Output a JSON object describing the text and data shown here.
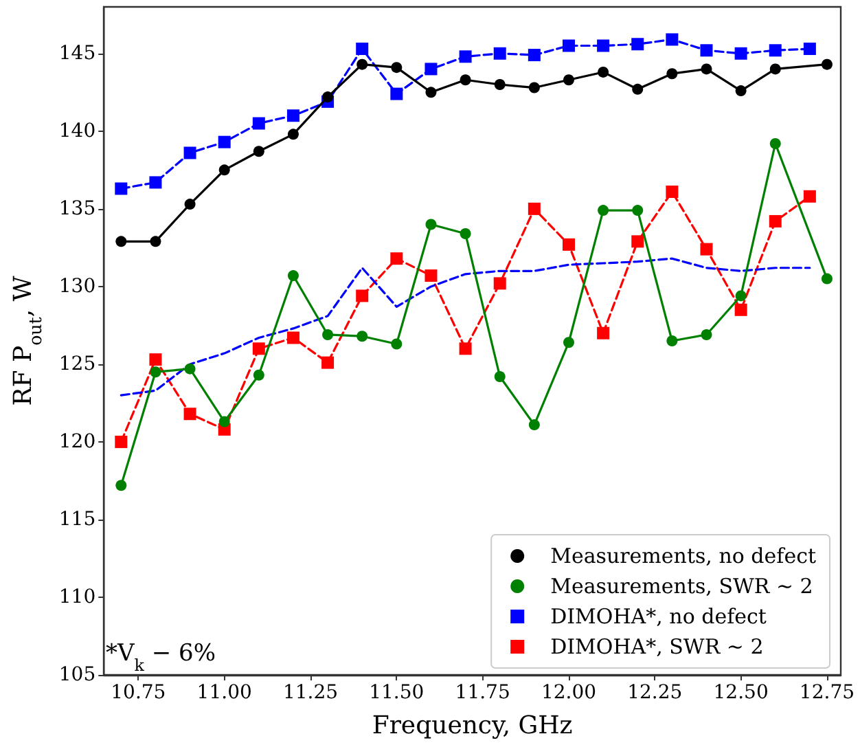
{
  "chart_data": {
    "type": "line",
    "xlabel": "Frequency, GHz",
    "ylabel": "RF P$_{out}$, W",
    "xlim": [
      10.65,
      12.79
    ],
    "xticks": [
      {
        "value": 10.75,
        "label": "10.75"
      },
      {
        "value": 11,
        "label": "11.00"
      },
      {
        "value": 11.25,
        "label": "11.25"
      },
      {
        "value": 11.5,
        "label": "11.50"
      },
      {
        "value": 11.75,
        "label": "11.75"
      },
      {
        "value": 12,
        "label": "12.00"
      },
      {
        "value": 12.25,
        "label": "12.25"
      },
      {
        "value": 12.5,
        "label": "12.50"
      },
      {
        "value": 12.75,
        "label": "12.75"
      }
    ],
    "ylim": [
      105,
      148
    ],
    "yticks": [
      105,
      110,
      115,
      120,
      125,
      130,
      135,
      140,
      145
    ],
    "grid": false,
    "legend": "bottom right",
    "annotations": [
      "*V$_{k}$ − 6%"
    ],
    "series": [
      {
        "name": "Measurements, no defect",
        "color": "#000000",
        "marker": "circle",
        "line_style": "solid",
        "x": [
          10.7,
          10.8,
          10.9,
          11.0,
          11.1,
          11.2,
          11.3,
          11.4,
          11.5,
          11.6,
          11.7,
          11.8,
          11.9,
          12.0,
          12.1,
          12.2,
          12.3,
          12.4,
          12.5,
          12.6,
          12.75
        ],
        "values": [
          132.9,
          132.9,
          135.3,
          137.5,
          138.7,
          139.8,
          142.2,
          144.3,
          144.1,
          142.5,
          143.3,
          143.0,
          142.8,
          143.3,
          143.8,
          142.7,
          143.7,
          144.0,
          142.6,
          144.0,
          144.3
        ]
      },
      {
        "name": "Measurements, SWR ~ 2",
        "color": "#008000",
        "marker": "circle",
        "line_style": "solid",
        "x": [
          10.7,
          10.8,
          10.9,
          11.0,
          11.1,
          11.2,
          11.3,
          11.4,
          11.5,
          11.6,
          11.7,
          11.8,
          11.9,
          12.0,
          12.1,
          12.2,
          12.3,
          12.4,
          12.5,
          12.6,
          12.75
        ],
        "values": [
          117.2,
          124.5,
          124.7,
          121.3,
          124.3,
          130.7,
          126.9,
          126.8,
          126.3,
          134.0,
          133.4,
          124.2,
          121.1,
          126.4,
          134.9,
          134.9,
          126.5,
          126.9,
          129.4,
          139.2,
          130.5
        ]
      },
      {
        "name": "DIMOHA*, no defect",
        "color": "#0000ff",
        "marker": "square",
        "line_style": "dashed",
        "x": [
          10.7,
          10.8,
          10.9,
          11.0,
          11.1,
          11.2,
          11.3,
          11.4,
          11.5,
          11.6,
          11.7,
          11.8,
          11.9,
          12.0,
          12.1,
          12.2,
          12.3,
          12.4,
          12.5,
          12.6,
          12.7
        ],
        "values": [
          136.3,
          136.7,
          138.6,
          139.3,
          140.5,
          141.0,
          141.9,
          145.3,
          142.4,
          144.0,
          144.8,
          145.0,
          144.9,
          145.5,
          145.5,
          145.6,
          145.9,
          145.2,
          145.0,
          145.2,
          145.3
        ]
      },
      {
        "name": "DIMOHA*, SWR ~ 2",
        "color": "#ff0000",
        "marker": "square",
        "line_style": "dashed",
        "x": [
          10.7,
          10.8,
          10.9,
          11.0,
          11.1,
          11.2,
          11.3,
          11.4,
          11.5,
          11.6,
          11.7,
          11.8,
          11.9,
          12.0,
          12.1,
          12.2,
          12.3,
          12.4,
          12.5,
          12.6,
          12.7
        ],
        "values": [
          120.0,
          125.3,
          121.8,
          120.8,
          126.0,
          126.7,
          125.1,
          129.4,
          131.8,
          130.7,
          126.0,
          130.2,
          135.0,
          132.7,
          127.0,
          132.9,
          136.1,
          132.4,
          128.5,
          134.2,
          135.8
        ]
      },
      {
        "color": "#0000ff",
        "marker": "none",
        "line_style": "dashed",
        "x": [
          10.7,
          10.8,
          10.9,
          11.0,
          11.1,
          11.2,
          11.3,
          11.4,
          11.5,
          11.6,
          11.7,
          11.8,
          11.9,
          12.0,
          12.1,
          12.2,
          12.3,
          12.4,
          12.5,
          12.6,
          12.7
        ],
        "values": [
          123.0,
          123.3,
          125.0,
          125.7,
          126.7,
          127.3,
          128.1,
          131.2,
          128.7,
          130.0,
          130.8,
          131.0,
          131.0,
          131.4,
          131.5,
          131.6,
          131.8,
          131.2,
          131.0,
          131.2,
          131.2
        ]
      }
    ]
  }
}
